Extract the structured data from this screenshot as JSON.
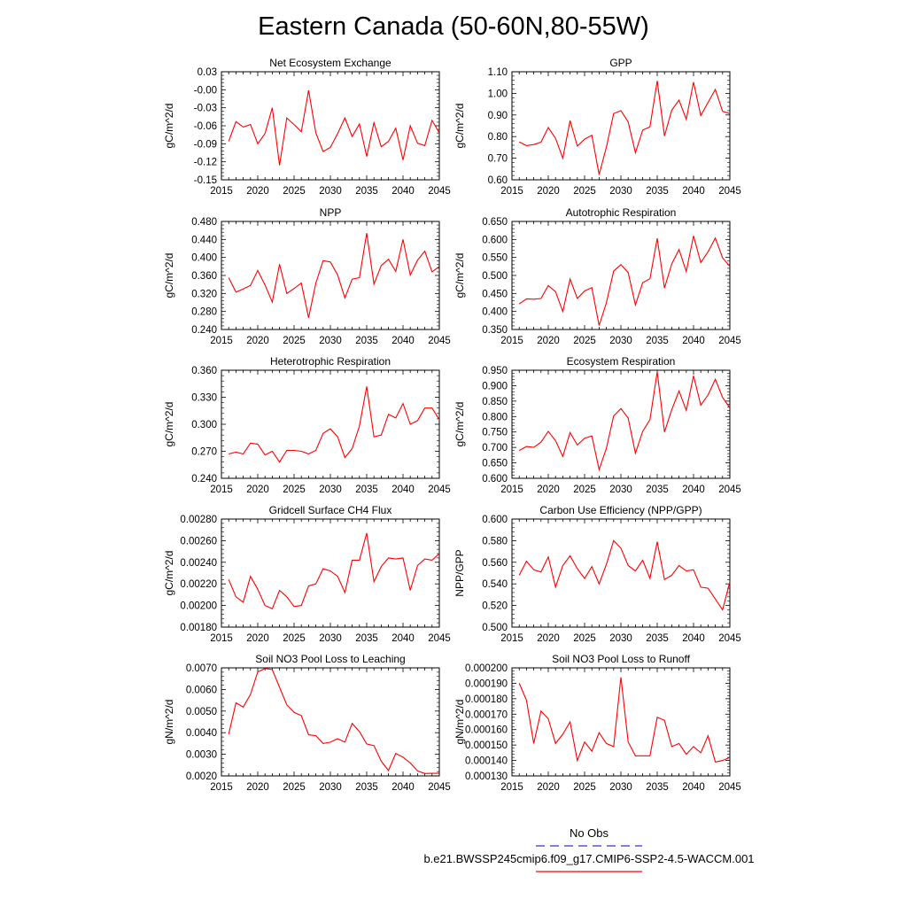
{
  "title": "Eastern Canada (50-60N,80-55W)",
  "legend": {
    "obs_label": "No Obs",
    "obs_color": "#3333cc",
    "case_label": "b.e21.BWSSP245cmip6.f09_g17.CMIP6-SSP2-4.5-WACCM.001",
    "case_color": "#ff0000"
  },
  "chart_data": [
    {
      "type": "line",
      "title": "Net Ecosystem Exchange",
      "ylabel": "gC/m^2/d",
      "xlim": [
        2015,
        2045
      ],
      "xticks": [
        2015,
        2020,
        2025,
        2030,
        2035,
        2040,
        2045
      ],
      "ylim": [
        -0.15,
        0.03
      ],
      "yticks": [
        "0.03",
        "-0.00",
        "-0.03",
        "-0.06",
        "-0.09",
        "-0.12",
        "-0.15"
      ],
      "x": [
        2016,
        2017,
        2018,
        2019,
        2020,
        2021,
        2022,
        2023,
        2024,
        2025,
        2026,
        2027,
        2028,
        2029,
        2030,
        2031,
        2032,
        2033,
        2034,
        2035,
        2036,
        2037,
        2038,
        2039,
        2040,
        2041,
        2042,
        2043,
        2044,
        2045
      ],
      "y": [
        -0.086,
        -0.053,
        -0.062,
        -0.058,
        -0.09,
        -0.073,
        -0.03,
        -0.126,
        -0.047,
        -0.058,
        -0.07,
        -0.001,
        -0.072,
        -0.103,
        -0.096,
        -0.073,
        -0.047,
        -0.078,
        -0.057,
        -0.111,
        -0.055,
        -0.095,
        -0.086,
        -0.064,
        -0.117,
        -0.06,
        -0.089,
        -0.093,
        -0.051,
        -0.072
      ]
    },
    {
      "type": "line",
      "title": "GPP",
      "ylabel": "gC/m^2/d",
      "xlim": [
        2015,
        2045
      ],
      "xticks": [
        2015,
        2020,
        2025,
        2030,
        2035,
        2040,
        2045
      ],
      "ylim": [
        0.6,
        1.1
      ],
      "yticks": [
        "1.10",
        "1.00",
        "0.90",
        "0.80",
        "0.70",
        "0.60"
      ],
      "x": [
        2016,
        2017,
        2018,
        2019,
        2020,
        2021,
        2022,
        2023,
        2024,
        2025,
        2026,
        2027,
        2028,
        2029,
        2030,
        2031,
        2032,
        2033,
        2034,
        2035,
        2036,
        2037,
        2038,
        2039,
        2040,
        2041,
        2042,
        2043,
        2044,
        2045
      ],
      "y": [
        0.775,
        0.758,
        0.763,
        0.774,
        0.842,
        0.792,
        0.7,
        0.874,
        0.756,
        0.788,
        0.806,
        0.624,
        0.751,
        0.906,
        0.92,
        0.868,
        0.725,
        0.83,
        0.845,
        1.058,
        0.803,
        0.922,
        0.969,
        0.88,
        1.052,
        0.897,
        0.958,
        1.018,
        0.917,
        0.906
      ]
    },
    {
      "type": "line",
      "title": "NPP",
      "ylabel": "gC/m^2/d",
      "xlim": [
        2015,
        2045
      ],
      "xticks": [
        2015,
        2020,
        2025,
        2030,
        2035,
        2040,
        2045
      ],
      "ylim": [
        0.24,
        0.48
      ],
      "yticks": [
        "0.480",
        "0.440",
        "0.400",
        "0.360",
        "0.320",
        "0.280",
        "0.240"
      ],
      "x": [
        2016,
        2017,
        2018,
        2019,
        2020,
        2021,
        2022,
        2023,
        2024,
        2025,
        2026,
        2027,
        2028,
        2029,
        2030,
        2031,
        2032,
        2033,
        2034,
        2035,
        2036,
        2037,
        2038,
        2039,
        2040,
        2041,
        2042,
        2043,
        2044,
        2045
      ],
      "y": [
        0.355,
        0.323,
        0.33,
        0.338,
        0.371,
        0.339,
        0.301,
        0.385,
        0.32,
        0.331,
        0.343,
        0.266,
        0.343,
        0.393,
        0.39,
        0.361,
        0.31,
        0.352,
        0.355,
        0.454,
        0.341,
        0.382,
        0.396,
        0.369,
        0.44,
        0.361,
        0.394,
        0.414,
        0.368,
        0.38
      ]
    },
    {
      "type": "line",
      "title": "Autotrophic Respiration",
      "ylabel": "gC/m^2/d",
      "xlim": [
        2015,
        2045
      ],
      "xticks": [
        2015,
        2020,
        2025,
        2030,
        2035,
        2040,
        2045
      ],
      "ylim": [
        0.35,
        0.65
      ],
      "yticks": [
        "0.650",
        "0.600",
        "0.550",
        "0.500",
        "0.450",
        "0.400",
        "0.350"
      ],
      "x": [
        2016,
        2017,
        2018,
        2019,
        2020,
        2021,
        2022,
        2023,
        2024,
        2025,
        2026,
        2027,
        2028,
        2029,
        2030,
        2031,
        2032,
        2033,
        2034,
        2035,
        2036,
        2037,
        2038,
        2039,
        2040,
        2041,
        2042,
        2043,
        2044,
        2045
      ],
      "y": [
        0.421,
        0.435,
        0.434,
        0.436,
        0.472,
        0.455,
        0.4,
        0.49,
        0.436,
        0.457,
        0.466,
        0.361,
        0.424,
        0.512,
        0.53,
        0.508,
        0.418,
        0.48,
        0.491,
        0.603,
        0.465,
        0.532,
        0.572,
        0.511,
        0.61,
        0.536,
        0.566,
        0.604,
        0.549,
        0.525
      ]
    },
    {
      "type": "line",
      "title": "Heterotrophic Respiration",
      "ylabel": "gC/m^2/d",
      "xlim": [
        2015,
        2045
      ],
      "xticks": [
        2015,
        2020,
        2025,
        2030,
        2035,
        2040,
        2045
      ],
      "ylim": [
        0.24,
        0.36
      ],
      "yticks": [
        "0.360",
        "0.330",
        "0.300",
        "0.270",
        "0.240"
      ],
      "x": [
        2016,
        2017,
        2018,
        2019,
        2020,
        2021,
        2022,
        2023,
        2024,
        2025,
        2026,
        2027,
        2028,
        2029,
        2030,
        2031,
        2032,
        2033,
        2034,
        2035,
        2036,
        2037,
        2038,
        2039,
        2040,
        2041,
        2042,
        2043,
        2044,
        2045
      ],
      "y": [
        0.267,
        0.269,
        0.267,
        0.279,
        0.278,
        0.266,
        0.27,
        0.258,
        0.271,
        0.271,
        0.27,
        0.267,
        0.271,
        0.29,
        0.295,
        0.286,
        0.263,
        0.273,
        0.298,
        0.342,
        0.286,
        0.288,
        0.311,
        0.307,
        0.323,
        0.3,
        0.304,
        0.318,
        0.318,
        0.305
      ]
    },
    {
      "type": "line",
      "title": "Ecosystem Respiration",
      "ylabel": "gC/m^2/d",
      "xlim": [
        2015,
        2045
      ],
      "xticks": [
        2015,
        2020,
        2025,
        2030,
        2035,
        2040,
        2045
      ],
      "ylim": [
        0.6,
        0.95
      ],
      "yticks": [
        "0.950",
        "0.900",
        "0.850",
        "0.800",
        "0.750",
        "0.700",
        "0.650",
        "0.600"
      ],
      "x": [
        2016,
        2017,
        2018,
        2019,
        2020,
        2021,
        2022,
        2023,
        2024,
        2025,
        2026,
        2027,
        2028,
        2029,
        2030,
        2031,
        2032,
        2033,
        2034,
        2035,
        2036,
        2037,
        2038,
        2039,
        2040,
        2041,
        2042,
        2043,
        2044,
        2045
      ],
      "y": [
        0.69,
        0.703,
        0.7,
        0.717,
        0.752,
        0.722,
        0.671,
        0.748,
        0.708,
        0.73,
        0.737,
        0.628,
        0.697,
        0.802,
        0.826,
        0.795,
        0.681,
        0.752,
        0.79,
        0.945,
        0.75,
        0.822,
        0.883,
        0.82,
        0.932,
        0.837,
        0.87,
        0.921,
        0.862,
        0.828
      ]
    },
    {
      "type": "line",
      "title": "Gridcell Surface CH4 Flux",
      "ylabel": "gC/m^2/d",
      "xlim": [
        2015,
        2045
      ],
      "xticks": [
        2015,
        2020,
        2025,
        2030,
        2035,
        2040,
        2045
      ],
      "ylim": [
        0.0018,
        0.0028
      ],
      "yticks": [
        "0.00280",
        "0.00260",
        "0.00240",
        "0.00220",
        "0.00200",
        "0.00180"
      ],
      "x": [
        2016,
        2017,
        2018,
        2019,
        2020,
        2021,
        2022,
        2023,
        2024,
        2025,
        2026,
        2027,
        2028,
        2029,
        2030,
        2031,
        2032,
        2033,
        2034,
        2035,
        2036,
        2037,
        2038,
        2039,
        2040,
        2041,
        2042,
        2043,
        2044,
        2045
      ],
      "y": [
        0.00224,
        0.00208,
        0.00203,
        0.00227,
        0.00215,
        0.002,
        0.00197,
        0.00214,
        0.00208,
        0.00199,
        0.002,
        0.00218,
        0.0022,
        0.00234,
        0.00232,
        0.00227,
        0.00212,
        0.00242,
        0.00242,
        0.00267,
        0.00222,
        0.00236,
        0.00244,
        0.00243,
        0.00244,
        0.00214,
        0.00237,
        0.00243,
        0.00242,
        0.00248
      ]
    },
    {
      "type": "line",
      "title": "Carbon Use Efficiency (NPP/GPP)",
      "ylabel": "NPP/GPP",
      "xlim": [
        2015,
        2045
      ],
      "xticks": [
        2015,
        2020,
        2025,
        2030,
        2035,
        2040,
        2045
      ],
      "ylim": [
        0.5,
        0.6
      ],
      "yticks": [
        "0.600",
        "0.580",
        "0.560",
        "0.540",
        "0.520",
        "0.500"
      ],
      "x": [
        2016,
        2017,
        2018,
        2019,
        2020,
        2021,
        2022,
        2023,
        2024,
        2025,
        2026,
        2027,
        2028,
        2029,
        2030,
        2031,
        2032,
        2033,
        2034,
        2035,
        2036,
        2037,
        2038,
        2039,
        2040,
        2041,
        2042,
        2043,
        2044,
        2045
      ],
      "y": [
        0.548,
        0.561,
        0.553,
        0.551,
        0.565,
        0.537,
        0.557,
        0.566,
        0.554,
        0.545,
        0.556,
        0.54,
        0.558,
        0.58,
        0.573,
        0.557,
        0.552,
        0.562,
        0.545,
        0.579,
        0.544,
        0.548,
        0.557,
        0.552,
        0.553,
        0.537,
        0.536,
        0.526,
        0.516,
        0.542
      ]
    },
    {
      "type": "line",
      "title": "Soil NO3 Pool Loss to Leaching",
      "ylabel": "gN/m^2/d",
      "xlim": [
        2015,
        2045
      ],
      "xticks": [
        2015,
        2020,
        2025,
        2030,
        2035,
        2040,
        2045
      ],
      "ylim": [
        0.002,
        0.007
      ],
      "yticks": [
        "0.0070",
        "0.0060",
        "0.0050",
        "0.0040",
        "0.0030",
        "0.0020"
      ],
      "x": [
        2016,
        2017,
        2018,
        2019,
        2020,
        2021,
        2022,
        2023,
        2024,
        2025,
        2026,
        2027,
        2028,
        2029,
        2030,
        2031,
        2032,
        2033,
        2034,
        2035,
        2036,
        2037,
        2038,
        2039,
        2040,
        2041,
        2042,
        2043,
        2044,
        2045
      ],
      "y": [
        0.00393,
        0.00538,
        0.00519,
        0.00577,
        0.00681,
        0.00697,
        0.00692,
        0.0061,
        0.00529,
        0.00494,
        0.00479,
        0.0039,
        0.00386,
        0.0035,
        0.00356,
        0.00372,
        0.00356,
        0.00443,
        0.00405,
        0.00348,
        0.0034,
        0.00268,
        0.00225,
        0.00304,
        0.00287,
        0.0026,
        0.00223,
        0.00211,
        0.00212,
        0.00212
      ]
    },
    {
      "type": "line",
      "title": "Soil NO3 Pool Loss to Runoff",
      "ylabel": "gN/m^2/d",
      "xlim": [
        2015,
        2045
      ],
      "xticks": [
        2015,
        2020,
        2025,
        2030,
        2035,
        2040,
        2045
      ],
      "ylim": [
        0.00013,
        0.0002
      ],
      "yticks": [
        "0.000200",
        "0.000190",
        "0.000180",
        "0.000170",
        "0.000160",
        "0.000150",
        "0.000140",
        "0.000130"
      ],
      "x": [
        2016,
        2017,
        2018,
        2019,
        2020,
        2021,
        2022,
        2023,
        2024,
        2025,
        2026,
        2027,
        2028,
        2029,
        2030,
        2031,
        2032,
        2033,
        2034,
        2035,
        2036,
        2037,
        2038,
        2039,
        2040,
        2041,
        2042,
        2043,
        2044,
        2045
      ],
      "y": [
        0.00019,
        0.000179,
        0.000151,
        0.000172,
        0.000167,
        0.000151,
        0.000157,
        0.000165,
        0.00014,
        0.000152,
        0.000146,
        0.000158,
        0.000151,
        0.000149,
        0.000194,
        0.000152,
        0.000143,
        0.000143,
        0.000143,
        0.000168,
        0.000166,
        0.000149,
        0.000151,
        0.000144,
        0.000149,
        0.000145,
        0.000156,
        0.000139,
        0.00014,
        0.000142
      ]
    }
  ]
}
